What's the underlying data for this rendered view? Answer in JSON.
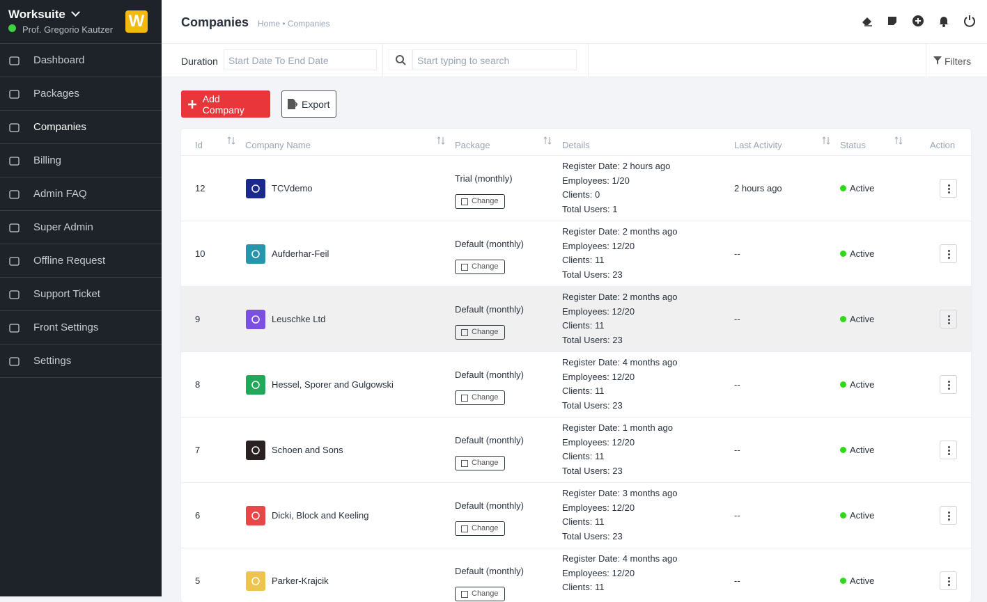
{
  "sidebar": {
    "app": "Worksuite",
    "user": "Prof. Gregorio Kautzer",
    "logo": "W",
    "active": 2,
    "menu": [
      "Dashboard",
      "Packages",
      "Companies",
      "Billing",
      "Admin FAQ",
      "Super Admin",
      "Offline Request",
      "Support Ticket",
      "Front Settings",
      "Settings"
    ]
  },
  "header": {
    "title": "Companies",
    "breadcrumb": "Home • Companies"
  },
  "filters": {
    "duration": "Duration",
    "date_placeholder": "Start Date To End Date",
    "search_placeholder": "Start typing to search",
    "filters": "Filters"
  },
  "actions": {
    "add": "Add Company",
    "export": "Export"
  },
  "table": {
    "columns": [
      "Id",
      "Company Name",
      "Package",
      "Details",
      "Last Activity",
      "Status",
      "Action"
    ],
    "change_label": "Change",
    "rows": [
      {
        "id": "12",
        "name": "TCVdemo",
        "icon_color": "#1a2a8a",
        "package": "Trial (monthly)",
        "details": [
          "Register Date: 2 hours ago",
          "Employees: 1/20",
          "Clients: 0",
          "Total Users: 1"
        ],
        "last_activity": "2 hours ago",
        "status": "Active"
      },
      {
        "id": "10",
        "name": "Aufderhar-Feil",
        "icon_color": "#2796ad",
        "package": "Default (monthly)",
        "details": [
          "Register Date: 2 months ago",
          "Employees: 12/20",
          "Clients: 11",
          "Total Users: 23"
        ],
        "last_activity": "--",
        "status": "Active"
      },
      {
        "id": "9",
        "name": "Leuschke Ltd",
        "icon_color": "#7b4fe0",
        "package": "Default (monthly)",
        "details": [
          "Register Date: 2 months ago",
          "Employees: 12/20",
          "Clients: 11",
          "Total Users: 23"
        ],
        "last_activity": "--",
        "status": "Active"
      },
      {
        "id": "8",
        "name": "Hessel, Sporer and Gulgowski",
        "icon_color": "#22a85a",
        "package": "Default (monthly)",
        "details": [
          "Register Date: 4 months ago",
          "Employees: 12/20",
          "Clients: 11",
          "Total Users: 23"
        ],
        "last_activity": "--",
        "status": "Active"
      },
      {
        "id": "7",
        "name": "Schoen and Sons",
        "icon_color": "#2a2222",
        "package": "Default (monthly)",
        "details": [
          "Register Date: 1 month ago",
          "Employees: 12/20",
          "Clients: 11",
          "Total Users: 23"
        ],
        "last_activity": "--",
        "status": "Active"
      },
      {
        "id": "6",
        "name": "Dicki, Block and Keeling",
        "icon_color": "#e8474a",
        "package": "Default (monthly)",
        "details": [
          "Register Date: 3 months ago",
          "Employees: 12/20",
          "Clients: 11",
          "Total Users: 23"
        ],
        "last_activity": "--",
        "status": "Active"
      },
      {
        "id": "5",
        "name": "Parker-Krajcik",
        "icon_color": "#edc54e",
        "package": "Default (monthly)",
        "details": [
          "Register Date: 4 months ago",
          "Employees: 12/20",
          "Clients: 11"
        ],
        "last_activity": "--",
        "status": "Active"
      }
    ]
  }
}
